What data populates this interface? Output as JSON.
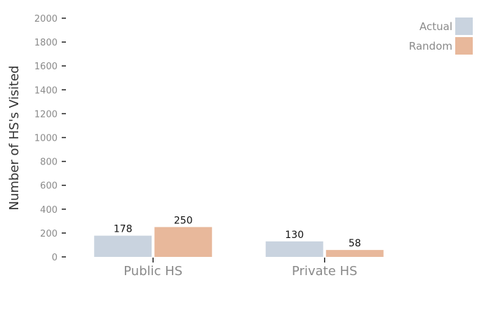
{
  "chart_data": {
    "type": "bar",
    "title": "",
    "xlabel": "",
    "ylabel": "Number of HS's Visited",
    "categories": [
      "Public HS",
      "Private HS"
    ],
    "series": [
      {
        "name": "Actual",
        "values": [
          178,
          130
        ],
        "color": "#c9d3df"
      },
      {
        "name": "Random",
        "values": [
          250,
          58
        ],
        "color": "#e8b89b"
      }
    ],
    "ylim": [
      0,
      2000
    ],
    "yticks": [
      0,
      200,
      400,
      600,
      800,
      1000,
      1200,
      1400,
      1600,
      1800,
      2000
    ],
    "grid": false,
    "legend": "top-right"
  }
}
